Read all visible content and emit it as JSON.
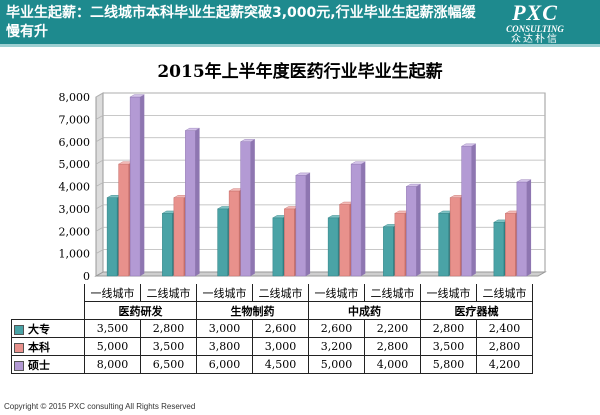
{
  "header": {
    "headline": "毕业生起薪：二线城市本科毕业生起薪突破3,000元,行业毕业生起薪涨幅缓慢有升",
    "logo_main": "PXC",
    "logo_sub": "CONSULTING",
    "logo_cn": "众达朴信"
  },
  "footer": {
    "copyright": "Copyright © 2015 PXC consulting All Rights Reserved"
  },
  "colors": {
    "header": "#1e8a8e",
    "dazhuan": "#4aa3a6",
    "benke": "#e8918c",
    "shuoshi": "#b39ad4"
  },
  "chart_data": {
    "type": "bar",
    "title": "2015年上半年度医药行业毕业生起薪",
    "categories": [
      "一线城市",
      "二线城市",
      "一线城市",
      "二线城市",
      "一线城市",
      "二线城市",
      "一线城市",
      "二线城市"
    ],
    "groups": [
      "医药研发",
      "生物制药",
      "中成药",
      "医疗器械"
    ],
    "series": [
      {
        "name": "大专",
        "values": [
          3500,
          2800,
          3000,
          2600,
          2600,
          2200,
          2800,
          2400
        ]
      },
      {
        "name": "本科",
        "values": [
          5000,
          3500,
          3800,
          3000,
          3200,
          2800,
          3500,
          2800
        ]
      },
      {
        "name": "硕士",
        "values": [
          8000,
          6500,
          6000,
          4500,
          5000,
          4000,
          5800,
          4200
        ]
      }
    ],
    "yticks": [
      "0",
      "1,000",
      "2,000",
      "3,000",
      "4,000",
      "5,000",
      "6,000",
      "7,000",
      "8,000"
    ],
    "ylim": [
      0,
      8000
    ],
    "grid": true,
    "legend": "data-table",
    "table_values": [
      [
        "3,500",
        "2,800",
        "3,000",
        "2,600",
        "2,600",
        "2,200",
        "2,800",
        "2,400"
      ],
      [
        "5,000",
        "3,500",
        "3,800",
        "3,000",
        "3,200",
        "2,800",
        "3,500",
        "2,800"
      ],
      [
        "8,000",
        "6,500",
        "6,000",
        "4,500",
        "5,000",
        "4,000",
        "5,800",
        "4,200"
      ]
    ]
  }
}
